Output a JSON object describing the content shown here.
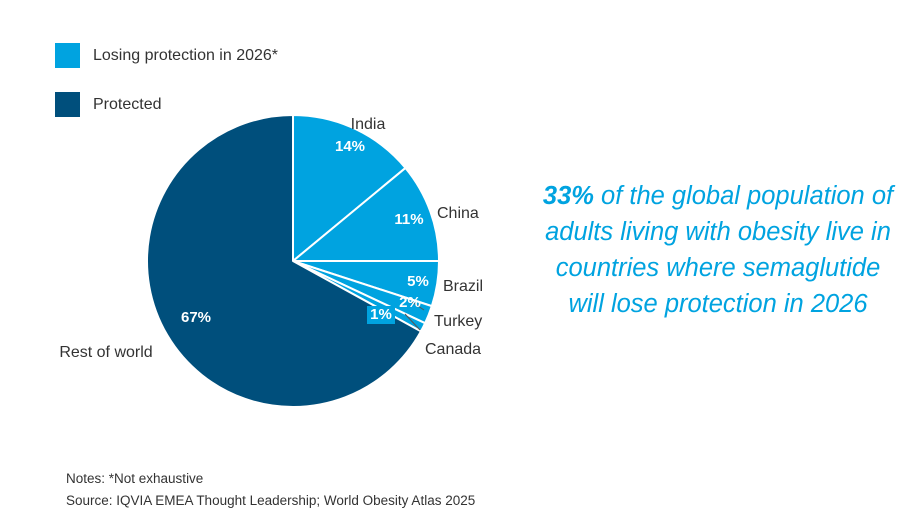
{
  "colors": {
    "losing": "#00a3e0",
    "protected": "#004f7c",
    "text": "#333333"
  },
  "legend": [
    {
      "label": "Losing protection in 2026*",
      "color": "#00a3e0"
    },
    {
      "label": "Protected",
      "color": "#004f7c"
    }
  ],
  "chart_data": {
    "type": "pie",
    "title": "",
    "slices": [
      {
        "label": "India",
        "value": 14,
        "value_label": "14%",
        "group": "losing"
      },
      {
        "label": "China",
        "value": 11,
        "value_label": "11%",
        "group": "losing"
      },
      {
        "label": "Brazil",
        "value": 5,
        "value_label": "5%",
        "group": "losing"
      },
      {
        "label": "Turkey",
        "value": 2,
        "value_label": "2%",
        "group": "losing"
      },
      {
        "label": "Canada",
        "value": 1,
        "value_label": "1%",
        "group": "losing"
      },
      {
        "label": "Rest of world",
        "value": 67,
        "value_label": "67%",
        "group": "protected"
      }
    ]
  },
  "callout": {
    "highlight": "33%",
    "text": " of the global population of adults living with obesity live in countries where semaglutide will lose protection in 2026"
  },
  "notes": {
    "line1": "Notes: *Not exhaustive",
    "line2": "Source: IQVIA EMEA Thought Leadership; World Obesity Atlas 2025"
  }
}
